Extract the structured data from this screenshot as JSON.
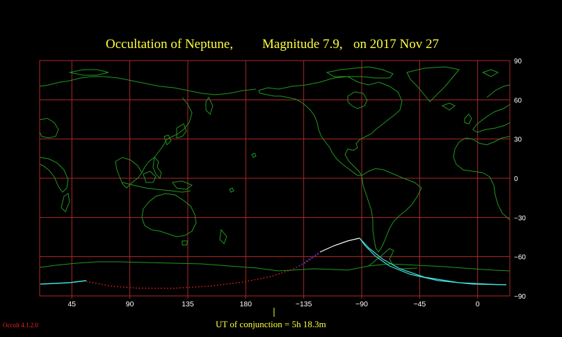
{
  "title": {
    "part1": "Occultation  of  Neptune,",
    "part2": "Magnitude 7.9,",
    "part3": "on  2017 Nov 27"
  },
  "latitude_ticks": [
    "90",
    "60",
    "30",
    "0",
    "−30",
    "−60",
    "−90"
  ],
  "longitude_ticks": [
    "45",
    "90",
    "135",
    "180",
    "−135",
    "−90",
    "−45",
    "0"
  ],
  "conjunction_label": "UT of conjunction =  5h 18.3m",
  "version_label": "Occult 4.1.2.0",
  "colors": {
    "background": "#000000",
    "grid": "#b02828",
    "coastline": "#1f9a1f",
    "title": "#ffff40",
    "path_center_day": "#ffffff",
    "path_limits_day": "#40e0e0",
    "path_night": "#ff2020",
    "path_twilight": "#3030ff",
    "version": "#ff2020"
  },
  "map": {
    "projection": "equirectangular",
    "lon_range_east": [
      20,
      385
    ],
    "lat_range": [
      -90,
      90
    ],
    "lat_grid_step": 30,
    "lon_grid_step": 45
  }
}
